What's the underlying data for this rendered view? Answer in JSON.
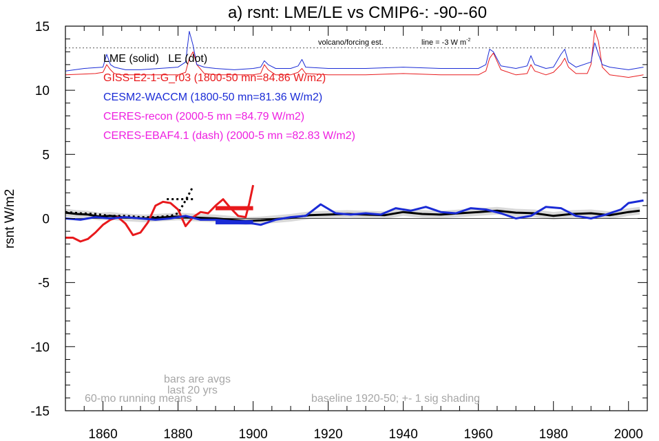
{
  "chart_data": {
    "type": "line",
    "title": "a) rsnt: LME/LE vs CMIP6-: -90--60",
    "ylabel": "rsnt W/m2",
    "xlabel": "",
    "xlim": [
      1850,
      2005
    ],
    "ylim": [
      -15,
      15
    ],
    "x_ticks": [
      1860,
      1880,
      1900,
      1920,
      1940,
      1960,
      1980,
      2000
    ],
    "y_ticks": [
      15,
      10,
      5,
      0,
      -5,
      -10,
      -15
    ],
    "legend": {
      "header": "LME (solid)   LE (dot)",
      "entries": [
        {
          "text": "GISS-E2-1-G_r03 (1800-50 mn=84.86 W/m2)",
          "color": "#e8191c"
        },
        {
          "text": "CESM2-WACCM (1800-50 mn=81.36 W/m2)",
          "color": "#1a2bd6"
        },
        {
          "text": "CERES-recon (2000-5 mn =84.79 W/m2)",
          "color": "#ee1fe0"
        },
        {
          "text": "CERES-EBAF4.1 (dash) (2000-5 mn =82.83 W/m2)",
          "color": "#ee1fe0"
        }
      ]
    },
    "annotations": {
      "volcano": "volcano/forcing est.",
      "line_label": "line = -3 W m",
      "line_label_sup": "-2",
      "bars_note_1": "bars are avgs",
      "bars_note_2": "last 20 yrs",
      "running_means": "60-mo running means",
      "baseline": "baseline 1920-50; +- 1 sig shading"
    },
    "forcing_line_y": 13.3,
    "colors": {
      "red": "#e8191c",
      "blue": "#1a2bd6",
      "black": "#000000",
      "gray_text": "#a6a6a6",
      "shade": "#d9d9d9"
    },
    "series": [
      {
        "name": "LME",
        "color": "#000000",
        "style": "solid",
        "x": [
          1850,
          1853,
          1856,
          1859,
          1862,
          1865,
          1868,
          1871,
          1874,
          1877,
          1880,
          1883,
          1886,
          1890,
          1894,
          1898,
          1902,
          1906,
          1910,
          1915,
          1920,
          1925,
          1930,
          1935,
          1940,
          1945,
          1950,
          1955,
          1960,
          1965,
          1970,
          1975,
          1980,
          1985,
          1990,
          1995,
          2000,
          2003
        ],
        "y": [
          0.45,
          0.35,
          0.3,
          0.15,
          0.2,
          0.1,
          0.05,
          0.0,
          0.05,
          0.1,
          0.15,
          0.1,
          0.05,
          0.0,
          -0.1,
          -0.2,
          -0.15,
          -0.05,
          0.05,
          0.25,
          0.3,
          0.35,
          0.3,
          0.25,
          0.5,
          0.35,
          0.3,
          0.4,
          0.5,
          0.6,
          0.45,
          0.4,
          0.2,
          0.35,
          0.4,
          0.25,
          0.5,
          0.6
        ]
      },
      {
        "name": "LE",
        "color": "#000000",
        "style": "dot",
        "x": [
          1850,
          1854,
          1858,
          1862,
          1866,
          1870,
          1874,
          1878,
          1880,
          1882,
          1884
        ],
        "y": [
          0.5,
          0.4,
          0.35,
          0.2,
          0.2,
          0.1,
          0.1,
          0.2,
          0.4,
          1.4,
          2.5
        ]
      },
      {
        "name": "GISS-E2-1-G_r03",
        "color": "#e8191c",
        "style": "solid",
        "x": [
          1850,
          1852,
          1854,
          1856,
          1858,
          1860,
          1862,
          1864,
          1866,
          1868,
          1870,
          1872,
          1874,
          1876,
          1878,
          1880,
          1882,
          1884,
          1886,
          1888,
          1890,
          1892,
          1894,
          1896,
          1898,
          1899,
          1900
        ],
        "y": [
          -1.5,
          -1.5,
          -1.8,
          -1.6,
          -1.1,
          -0.5,
          -0.1,
          0.1,
          -0.4,
          -1.3,
          -1.1,
          -0.3,
          1.0,
          1.3,
          1.2,
          0.7,
          -0.6,
          0.1,
          0.5,
          0.4,
          1.0,
          1.5,
          0.8,
          0.2,
          0.1,
          1.2,
          2.6
        ]
      },
      {
        "name": "CESM2-WACCM",
        "color": "#1a2bd6",
        "style": "solid",
        "x": [
          1850,
          1854,
          1858,
          1862,
          1866,
          1870,
          1874,
          1878,
          1882,
          1886,
          1890,
          1894,
          1898,
          1902,
          1906,
          1910,
          1914,
          1918,
          1922,
          1926,
          1930,
          1934,
          1938,
          1942,
          1946,
          1950,
          1954,
          1958,
          1962,
          1966,
          1970,
          1974,
          1978,
          1982,
          1986,
          1990,
          1994,
          1998,
          2000,
          2004
        ],
        "y": [
          0.0,
          -0.1,
          0.1,
          0.0,
          0.1,
          0.0,
          -0.1,
          0.0,
          0.2,
          -0.1,
          -0.1,
          -0.2,
          -0.3,
          -0.5,
          -0.1,
          0.1,
          0.2,
          1.1,
          0.4,
          0.3,
          0.4,
          0.3,
          0.8,
          0.6,
          0.9,
          0.5,
          0.4,
          0.8,
          0.7,
          0.4,
          0.0,
          0.2,
          0.9,
          0.8,
          0.2,
          0.0,
          0.3,
          0.7,
          1.2,
          1.4
        ]
      },
      {
        "name": "GISS-E2-1-G_r03 forcing",
        "color": "#e8191c",
        "style": "thin",
        "x": [
          1850,
          1858,
          1860,
          1861,
          1862,
          1863,
          1865,
          1870,
          1875,
          1880,
          1882,
          1883,
          1884,
          1885,
          1887,
          1890,
          1895,
          1900,
          1902,
          1903,
          1904,
          1906,
          1910,
          1912,
          1913,
          1914,
          1920,
          1930,
          1940,
          1950,
          1960,
          1962,
          1963,
          1964,
          1966,
          1970,
          1973,
          1974,
          1975,
          1978,
          1980,
          1982,
          1983,
          1984,
          1986,
          1989,
          1990,
          1991,
          1992,
          1993,
          1995,
          2000,
          2004
        ],
        "y": [
          11.2,
          11.3,
          11.4,
          12.0,
          11.6,
          11.3,
          11.2,
          11.2,
          11.2,
          11.2,
          11.4,
          12.5,
          13.0,
          12.0,
          11.3,
          11.2,
          11.2,
          11.2,
          11.3,
          12.0,
          11.6,
          11.2,
          11.2,
          11.4,
          11.7,
          11.3,
          11.2,
          11.2,
          11.3,
          11.2,
          11.2,
          11.5,
          12.5,
          12.9,
          11.6,
          11.2,
          11.3,
          12.0,
          11.5,
          11.2,
          11.4,
          12.0,
          12.5,
          11.8,
          11.3,
          11.3,
          12.0,
          14.7,
          13.8,
          11.8,
          11.2,
          11.0,
          11.2
        ]
      },
      {
        "name": "CESM2-WACCM forcing",
        "color": "#1a2bd6",
        "style": "thin",
        "x": [
          1850,
          1855,
          1860,
          1861,
          1862,
          1863,
          1866,
          1870,
          1875,
          1880,
          1882,
          1883,
          1884,
          1885,
          1887,
          1890,
          1895,
          1900,
          1902,
          1903,
          1904,
          1906,
          1910,
          1912,
          1913,
          1914,
          1920,
          1930,
          1940,
          1950,
          1960,
          1962,
          1963,
          1964,
          1966,
          1970,
          1973,
          1974,
          1975,
          1978,
          1980,
          1982,
          1983,
          1984,
          1986,
          1990,
          1991,
          1992,
          1993,
          1995,
          2000,
          2004
        ],
        "y": [
          11.5,
          11.7,
          11.8,
          12.8,
          12.0,
          11.8,
          11.6,
          11.6,
          11.7,
          11.8,
          12.2,
          14.6,
          13.5,
          12.0,
          11.8,
          11.7,
          11.6,
          11.7,
          11.8,
          12.3,
          12.0,
          11.7,
          11.7,
          11.9,
          12.4,
          11.8,
          11.7,
          11.7,
          11.8,
          11.7,
          11.7,
          12.0,
          13.2,
          13.0,
          11.9,
          11.7,
          11.9,
          12.7,
          12.0,
          11.7,
          11.8,
          12.8,
          13.2,
          12.2,
          11.8,
          12.2,
          13.7,
          12.8,
          12.0,
          11.8,
          11.6,
          11.8
        ]
      }
    ],
    "bars": [
      {
        "name": "GISS-E2-1-G_r03",
        "color": "#e8191c",
        "x0": 1890,
        "x1": 1900,
        "y": 0.8
      },
      {
        "name": "CESM2-WACCM",
        "color": "#1a2bd6",
        "x0": 1890,
        "x1": 1900,
        "y": -0.3
      },
      {
        "name": "LE",
        "color": "#000000",
        "x0": 1877,
        "x1": 1884,
        "y": 1.5
      }
    ]
  }
}
